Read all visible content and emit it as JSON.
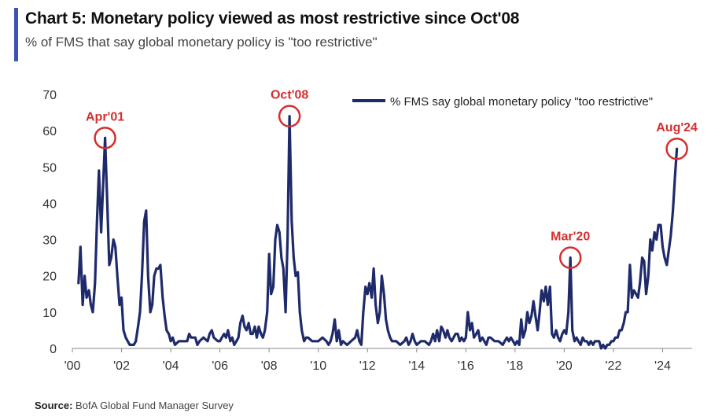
{
  "header": {
    "title": "Chart 5: Monetary policy viewed as most restrictive since Oct'08",
    "subtitle": "% of FMS that say global monetary policy is \"too restrictive\"",
    "accent_color": "#3f51b5"
  },
  "footer": {
    "source_label": "Source:",
    "source_text": "BofA Global Fund Manager Survey"
  },
  "colors": {
    "line": "#1f2a6b",
    "annotation": "#d32f2f",
    "axis": "#888888"
  },
  "chart_data": {
    "type": "line",
    "title": "Chart 5: Monetary policy viewed as most restrictive since Oct'08",
    "subtitle": "% of FMS that say global monetary policy is \"too restrictive\"",
    "xlabel": "",
    "ylabel": "",
    "ylim": [
      0,
      70
    ],
    "xlim": [
      2000.0,
      2025.2
    ],
    "yticks": [
      0,
      10,
      20,
      30,
      40,
      50,
      60,
      70
    ],
    "xticks": [
      {
        "value": 2000,
        "label": "'00"
      },
      {
        "value": 2002,
        "label": "'02"
      },
      {
        "value": 2004,
        "label": "'04"
      },
      {
        "value": 2006,
        "label": "'06"
      },
      {
        "value": 2008,
        "label": "'08"
      },
      {
        "value": 2010,
        "label": "'10"
      },
      {
        "value": 2012,
        "label": "'12"
      },
      {
        "value": 2014,
        "label": "'14"
      },
      {
        "value": 2016,
        "label": "'16"
      },
      {
        "value": 2018,
        "label": "'18"
      },
      {
        "value": 2020,
        "label": "'20"
      },
      {
        "value": 2022,
        "label": "'22"
      },
      {
        "value": 2024,
        "label": "'24"
      }
    ],
    "grid": false,
    "legend": {
      "position": "top-right"
    },
    "series": [
      {
        "name": "% FMS say global monetary policy \"too restrictive\"",
        "points": [
          [
            2000.25,
            18
          ],
          [
            2000.33,
            28
          ],
          [
            2000.42,
            12
          ],
          [
            2000.5,
            20
          ],
          [
            2000.58,
            14
          ],
          [
            2000.67,
            16
          ],
          [
            2000.75,
            12
          ],
          [
            2000.83,
            10
          ],
          [
            2000.92,
            18
          ],
          [
            2001.0,
            35
          ],
          [
            2001.08,
            49
          ],
          [
            2001.17,
            32
          ],
          [
            2001.25,
            45
          ],
          [
            2001.33,
            58
          ],
          [
            2001.42,
            40
          ],
          [
            2001.5,
            23
          ],
          [
            2001.58,
            25
          ],
          [
            2001.67,
            30
          ],
          [
            2001.75,
            28
          ],
          [
            2001.83,
            20
          ],
          [
            2001.92,
            12
          ],
          [
            2002.0,
            14
          ],
          [
            2002.08,
            5
          ],
          [
            2002.17,
            3
          ],
          [
            2002.25,
            2
          ],
          [
            2002.33,
            1
          ],
          [
            2002.5,
            1
          ],
          [
            2002.58,
            2
          ],
          [
            2002.67,
            6
          ],
          [
            2002.75,
            10
          ],
          [
            2002.83,
            20
          ],
          [
            2002.92,
            35
          ],
          [
            2003.0,
            38
          ],
          [
            2003.08,
            20
          ],
          [
            2003.17,
            10
          ],
          [
            2003.25,
            12
          ],
          [
            2003.33,
            20
          ],
          [
            2003.42,
            22
          ],
          [
            2003.5,
            22
          ],
          [
            2003.58,
            23
          ],
          [
            2003.67,
            14
          ],
          [
            2003.75,
            9
          ],
          [
            2003.83,
            5
          ],
          [
            2003.92,
            4
          ],
          [
            2004.0,
            2
          ],
          [
            2004.08,
            3
          ],
          [
            2004.17,
            1
          ],
          [
            2004.33,
            2
          ],
          [
            2004.5,
            2
          ],
          [
            2004.67,
            2
          ],
          [
            2004.75,
            4
          ],
          [
            2004.83,
            3
          ],
          [
            2005.0,
            3
          ],
          [
            2005.08,
            1
          ],
          [
            2005.17,
            2
          ],
          [
            2005.33,
            3
          ],
          [
            2005.5,
            2
          ],
          [
            2005.58,
            4
          ],
          [
            2005.67,
            5
          ],
          [
            2005.75,
            3
          ],
          [
            2005.92,
            2
          ],
          [
            2006.0,
            2
          ],
          [
            2006.08,
            3
          ],
          [
            2006.17,
            4
          ],
          [
            2006.25,
            3
          ],
          [
            2006.33,
            5
          ],
          [
            2006.42,
            2
          ],
          [
            2006.5,
            3
          ],
          [
            2006.58,
            1
          ],
          [
            2006.67,
            2
          ],
          [
            2006.75,
            3
          ],
          [
            2006.83,
            7
          ],
          [
            2006.92,
            9
          ],
          [
            2007.0,
            6
          ],
          [
            2007.08,
            5
          ],
          [
            2007.17,
            7
          ],
          [
            2007.25,
            4
          ],
          [
            2007.33,
            4
          ],
          [
            2007.42,
            6
          ],
          [
            2007.5,
            3
          ],
          [
            2007.58,
            6
          ],
          [
            2007.67,
            4
          ],
          [
            2007.75,
            3
          ],
          [
            2007.83,
            5
          ],
          [
            2007.92,
            10
          ],
          [
            2008.0,
            26
          ],
          [
            2008.08,
            15
          ],
          [
            2008.17,
            17
          ],
          [
            2008.25,
            30
          ],
          [
            2008.33,
            34
          ],
          [
            2008.42,
            32
          ],
          [
            2008.5,
            25
          ],
          [
            2008.58,
            22
          ],
          [
            2008.67,
            10
          ],
          [
            2008.75,
            30
          ],
          [
            2008.83,
            64
          ],
          [
            2008.92,
            35
          ],
          [
            2009.0,
            25
          ],
          [
            2009.08,
            20
          ],
          [
            2009.17,
            21
          ],
          [
            2009.25,
            10
          ],
          [
            2009.33,
            5
          ],
          [
            2009.42,
            2
          ],
          [
            2009.5,
            3
          ],
          [
            2009.58,
            3
          ],
          [
            2009.75,
            2
          ],
          [
            2009.92,
            2
          ],
          [
            2010.0,
            2
          ],
          [
            2010.17,
            3
          ],
          [
            2010.33,
            2
          ],
          [
            2010.42,
            1
          ],
          [
            2010.5,
            2
          ],
          [
            2010.58,
            4
          ],
          [
            2010.67,
            8
          ],
          [
            2010.75,
            2
          ],
          [
            2010.83,
            5
          ],
          [
            2010.92,
            1
          ],
          [
            2011.0,
            2
          ],
          [
            2011.17,
            1
          ],
          [
            2011.33,
            2
          ],
          [
            2011.5,
            3
          ],
          [
            2011.58,
            5
          ],
          [
            2011.67,
            2
          ],
          [
            2011.75,
            1
          ],
          [
            2011.83,
            10
          ],
          [
            2011.92,
            17
          ],
          [
            2012.0,
            15
          ],
          [
            2012.08,
            18
          ],
          [
            2012.17,
            14
          ],
          [
            2012.25,
            22
          ],
          [
            2012.33,
            12
          ],
          [
            2012.42,
            7
          ],
          [
            2012.5,
            10
          ],
          [
            2012.58,
            20
          ],
          [
            2012.67,
            15
          ],
          [
            2012.75,
            8
          ],
          [
            2012.83,
            5
          ],
          [
            2012.92,
            3
          ],
          [
            2013.0,
            2
          ],
          [
            2013.17,
            2
          ],
          [
            2013.33,
            1
          ],
          [
            2013.5,
            2
          ],
          [
            2013.58,
            3
          ],
          [
            2013.67,
            1
          ],
          [
            2013.75,
            2
          ],
          [
            2013.83,
            4
          ],
          [
            2013.92,
            2
          ],
          [
            2014.0,
            1
          ],
          [
            2014.17,
            2
          ],
          [
            2014.33,
            2
          ],
          [
            2014.5,
            1
          ],
          [
            2014.58,
            2
          ],
          [
            2014.67,
            4
          ],
          [
            2014.75,
            2
          ],
          [
            2014.83,
            5
          ],
          [
            2014.92,
            2
          ],
          [
            2015.0,
            6
          ],
          [
            2015.08,
            5
          ],
          [
            2015.17,
            3
          ],
          [
            2015.25,
            5
          ],
          [
            2015.33,
            3
          ],
          [
            2015.42,
            2
          ],
          [
            2015.5,
            3
          ],
          [
            2015.58,
            4
          ],
          [
            2015.67,
            4
          ],
          [
            2015.75,
            2
          ],
          [
            2015.83,
            3
          ],
          [
            2015.92,
            2
          ],
          [
            2016.0,
            3
          ],
          [
            2016.08,
            10
          ],
          [
            2016.17,
            5
          ],
          [
            2016.25,
            7
          ],
          [
            2016.33,
            3
          ],
          [
            2016.42,
            4
          ],
          [
            2016.5,
            5
          ],
          [
            2016.58,
            2
          ],
          [
            2016.67,
            3
          ],
          [
            2016.75,
            2
          ],
          [
            2016.83,
            1
          ],
          [
            2016.92,
            3
          ],
          [
            2017.0,
            3
          ],
          [
            2017.17,
            2
          ],
          [
            2017.33,
            2
          ],
          [
            2017.5,
            1
          ],
          [
            2017.58,
            2
          ],
          [
            2017.67,
            3
          ],
          [
            2017.75,
            2
          ],
          [
            2017.83,
            3
          ],
          [
            2017.92,
            2
          ],
          [
            2018.0,
            1
          ],
          [
            2018.08,
            2
          ],
          [
            2018.17,
            1
          ],
          [
            2018.25,
            8
          ],
          [
            2018.33,
            3
          ],
          [
            2018.42,
            5
          ],
          [
            2018.5,
            10
          ],
          [
            2018.58,
            7
          ],
          [
            2018.67,
            9
          ],
          [
            2018.75,
            13
          ],
          [
            2018.83,
            9
          ],
          [
            2018.92,
            5
          ],
          [
            2019.0,
            10
          ],
          [
            2019.08,
            16
          ],
          [
            2019.17,
            13
          ],
          [
            2019.25,
            17
          ],
          [
            2019.33,
            12
          ],
          [
            2019.42,
            17
          ],
          [
            2019.5,
            4
          ],
          [
            2019.58,
            3
          ],
          [
            2019.67,
            5
          ],
          [
            2019.75,
            3
          ],
          [
            2019.83,
            2
          ],
          [
            2019.92,
            4
          ],
          [
            2020.0,
            5
          ],
          [
            2020.08,
            4
          ],
          [
            2020.17,
            10
          ],
          [
            2020.25,
            25
          ],
          [
            2020.33,
            5
          ],
          [
            2020.42,
            2
          ],
          [
            2020.5,
            3
          ],
          [
            2020.58,
            2
          ],
          [
            2020.67,
            1
          ],
          [
            2020.75,
            3
          ],
          [
            2020.83,
            2
          ],
          [
            2020.92,
            2
          ],
          [
            2021.0,
            1
          ],
          [
            2021.08,
            2
          ],
          [
            2021.17,
            1
          ],
          [
            2021.25,
            2
          ],
          [
            2021.42,
            2
          ],
          [
            2021.5,
            0
          ],
          [
            2021.58,
            1
          ],
          [
            2021.67,
            0
          ],
          [
            2021.75,
            1
          ],
          [
            2021.83,
            1
          ],
          [
            2021.92,
            2
          ],
          [
            2022.0,
            2
          ],
          [
            2022.08,
            3
          ],
          [
            2022.17,
            3
          ],
          [
            2022.25,
            5
          ],
          [
            2022.33,
            5
          ],
          [
            2022.42,
            7
          ],
          [
            2022.5,
            10
          ],
          [
            2022.58,
            10
          ],
          [
            2022.67,
            23
          ],
          [
            2022.75,
            14
          ],
          [
            2022.83,
            16
          ],
          [
            2022.92,
            15
          ],
          [
            2023.0,
            14
          ],
          [
            2023.08,
            18
          ],
          [
            2023.17,
            25
          ],
          [
            2023.25,
            24
          ],
          [
            2023.33,
            15
          ],
          [
            2023.42,
            20
          ],
          [
            2023.5,
            30
          ],
          [
            2023.58,
            27
          ],
          [
            2023.67,
            32
          ],
          [
            2023.75,
            30
          ],
          [
            2023.83,
            34
          ],
          [
            2023.92,
            34
          ],
          [
            2024.0,
            28
          ],
          [
            2024.08,
            25
          ],
          [
            2024.17,
            23
          ],
          [
            2024.25,
            27
          ],
          [
            2024.33,
            31
          ],
          [
            2024.42,
            38
          ],
          [
            2024.5,
            47
          ],
          [
            2024.58,
            55
          ]
        ]
      }
    ],
    "annotations": [
      {
        "label": "Apr'01",
        "x": 2001.33,
        "y": 58
      },
      {
        "label": "Oct'08",
        "x": 2008.83,
        "y": 64
      },
      {
        "label": "Mar'20",
        "x": 2020.25,
        "y": 25
      },
      {
        "label": "Aug'24",
        "x": 2024.58,
        "y": 55
      }
    ]
  }
}
